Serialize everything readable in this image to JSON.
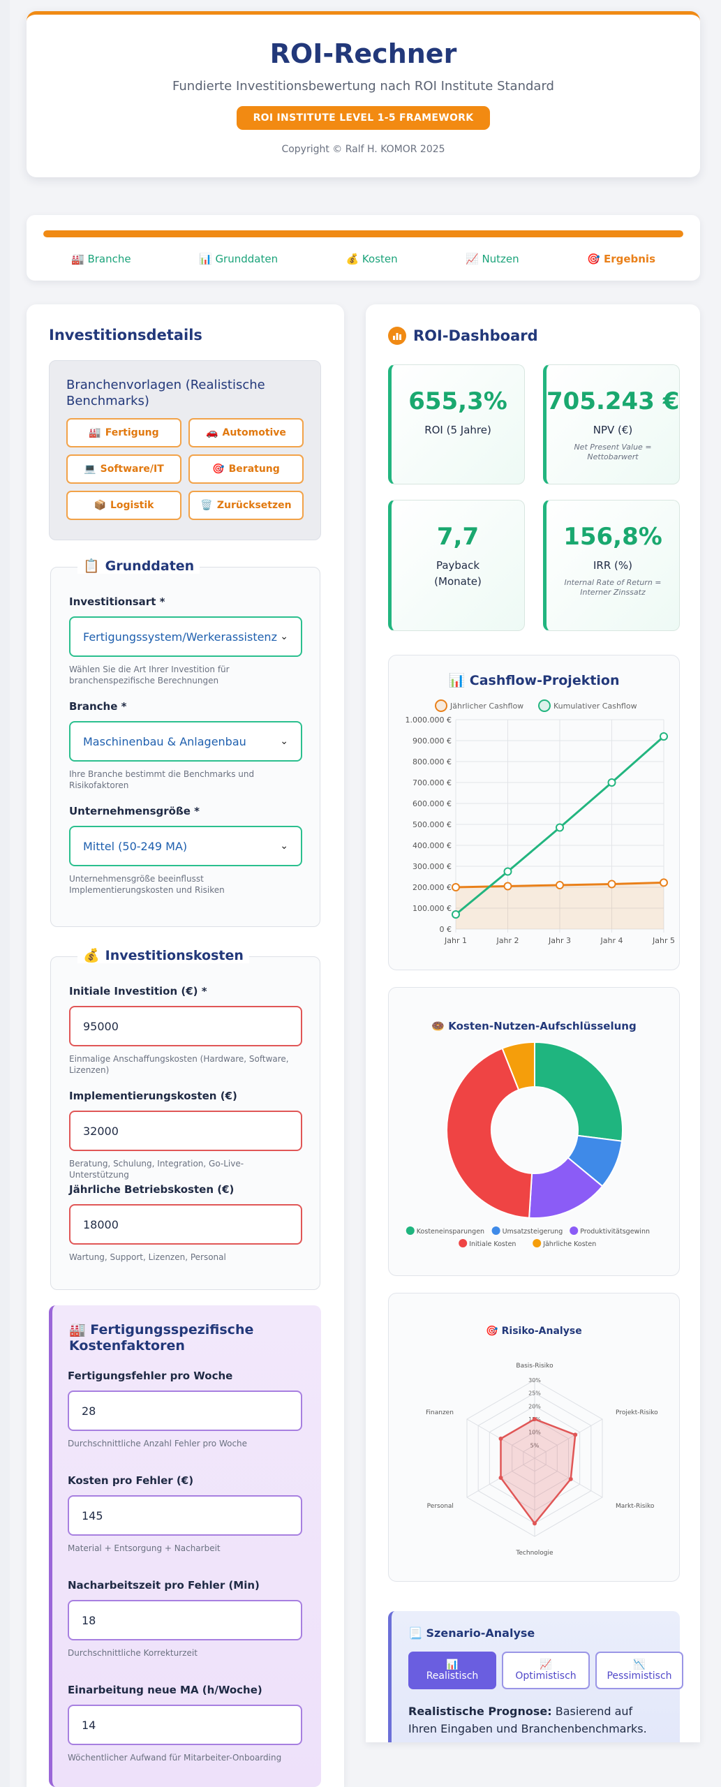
{
  "header": {
    "title": "ROI-Rechner",
    "subtitle": "Fundierte Investitionsbewertung nach ROI Institute Standard",
    "badge": "ROI INSTITUTE LEVEL 1-5 FRAMEWORK",
    "copyright": "Copyright © Ralf H. KOMOR 2025"
  },
  "progress": {
    "value": 1.0,
    "steps": [
      {
        "icon": "🏭",
        "label": "Branche"
      },
      {
        "icon": "📊",
        "label": "Grunddaten"
      },
      {
        "icon": "💰",
        "label": "Kosten"
      },
      {
        "icon": "📈",
        "label": "Nutzen"
      },
      {
        "icon": "🎯",
        "label": "Ergebnis"
      }
    ]
  },
  "left": {
    "title": "Investitionsdetails",
    "templates": {
      "title": "Branchenvorlagen (Realistische Benchmarks)",
      "buttons": [
        {
          "icon": "🏭",
          "label": "Fertigung"
        },
        {
          "icon": "🚗",
          "label": "Automotive"
        },
        {
          "icon": "💻",
          "label": "Software/IT"
        },
        {
          "icon": "🎯",
          "label": "Beratung"
        },
        {
          "icon": "📦",
          "label": "Logistik"
        },
        {
          "icon": "🗑️",
          "label": "Zurücksetzen"
        }
      ]
    },
    "grunddaten": {
      "icon": "📋",
      "title": "Grunddaten",
      "art_label": "Investitionsart *",
      "art_value": "Fertigungssystem/Werkerassistenz",
      "art_hint": "Wählen Sie die Art Ihrer Investition für branchenspezifische Berechnungen",
      "branche_label": "Branche *",
      "branche_value": "Maschinenbau & Anlagenbau",
      "branche_hint": "Ihre Branche bestimmt die Benchmarks und Risikofaktoren",
      "groesse_label": "Unternehmensgröße *",
      "groesse_value": "Mittel (50-249 MA)",
      "groesse_hint": "Unternehmensgröße beeinflusst Implementierungskosten und Risiken"
    },
    "kosten": {
      "icon": "💰",
      "title": "Investitionskosten",
      "initial_label": "Initiale Investition (€) *",
      "initial_value": "95000",
      "initial_hint": "Einmalige Anschaffungskosten (Hardware, Software, Lizenzen)",
      "impl_label": "Implementierungskosten (€)",
      "impl_value": "32000",
      "impl_hint": "Beratung, Schulung, Integration, Go-Live-Unterstützung",
      "betrieb_label": "Jährliche Betriebskosten (€)",
      "betrieb_value": "18000",
      "betrieb_hint": "Wartung, Support, Lizenzen, Personal"
    },
    "fertigung": {
      "icon": "🏭",
      "title": "Fertigungsspezifische Kostenfaktoren",
      "f1_label": "Fertigungsfehler pro Woche",
      "f1_value": "28",
      "f1_hint": "Durchschnittliche Anzahl Fehler pro Woche",
      "f2_label": "Kosten pro Fehler (€)",
      "f2_value": "145",
      "f2_hint": "Material + Entsorgung + Nacharbeit",
      "f3_label": "Nacharbeitszeit pro Fehler (Min)",
      "f3_value": "18",
      "f3_hint": "Durchschnittliche Korrekturzeit",
      "f4_label": "Einarbeitung neue MA (h/Woche)",
      "f4_value": "14",
      "f4_hint": "Wöchentlicher Aufwand für Mitarbeiter-Onboarding"
    }
  },
  "dashboard": {
    "title": "ROI-Dashboard",
    "kpis": [
      {
        "value": "655,3%",
        "label": "ROI (5 Jahre)",
        "sub": ""
      },
      {
        "value": "705.243 €",
        "label": "NPV (€)",
        "sub": "Net Present Value = Nettobarwert"
      },
      {
        "value": "7,7",
        "label": "Payback (Monate)",
        "sub": ""
      },
      {
        "value": "156,8%",
        "label": "IRR (%)",
        "sub": "Internal Rate of Return = Interner Zinssatz"
      }
    ],
    "cashflow_title": "Cashflow-Projektion",
    "kosten_title": "Kosten-Nutzen-Aufschlüsselung",
    "risiko_title": "Risiko-Analyse",
    "scenario": {
      "title": "Szenario-Analyse",
      "buttons": [
        {
          "icon": "📊",
          "label": "Realistisch"
        },
        {
          "icon": "📈",
          "label": "Optimistisch"
        },
        {
          "icon": "📉",
          "label": "Pessimistisch"
        }
      ],
      "text_bold": "Realistische Prognose:",
      "text": "Basierend auf Ihren Eingaben und Branchenbenchmarks."
    }
  },
  "chart_data": [
    {
      "type": "line",
      "title": "📊 Cashflow-Projektion",
      "categories": [
        "Jahr 1",
        "Jahr 2",
        "Jahr 3",
        "Jahr 4",
        "Jahr 5"
      ],
      "series": [
        {
          "name": "Jährlicher Cashflow",
          "color": "#e9801a",
          "values": [
            200000,
            205000,
            210000,
            215000,
            222000
          ]
        },
        {
          "name": "Kumulativer Cashflow",
          "color": "#22b57f",
          "values": [
            70000,
            275000,
            485000,
            700000,
            920000
          ]
        }
      ],
      "ylim": [
        0,
        1000000
      ],
      "yticks": [
        0,
        100000,
        200000,
        300000,
        400000,
        500000,
        600000,
        700000,
        800000,
        900000,
        1000000
      ],
      "ytick_labels": [
        "0 €",
        "100.000 €",
        "200.000 €",
        "300.000 €",
        "400.000 €",
        "500.000 €",
        "600.000 €",
        "700.000 €",
        "800.000 €",
        "900.000 €",
        "1.000.000 €"
      ],
      "legend": "top",
      "grid": true
    },
    {
      "type": "pie",
      "title": "🍩 Kosten-Nutzen-Aufschlüsselung",
      "labels": [
        "Kosteneinsparungen",
        "Umsatzsteigerung",
        "Produktivitätsgewinn",
        "Initiale Kosten",
        "Jährliche Kosten"
      ],
      "values": [
        27,
        9,
        15,
        43,
        6
      ],
      "colors": [
        "#1fb57f",
        "#3f8ae8",
        "#8b5cf6",
        "#ef4444",
        "#f59e0b"
      ],
      "legend": "bottom"
    },
    {
      "type": "radar",
      "title": "🎯 Risiko-Analyse",
      "axes": [
        "Basis-Risiko",
        "Projekt-Risiko",
        "Markt-Risiko",
        "Technologie",
        "Personal",
        "Finanzen"
      ],
      "values": [
        15,
        18,
        16,
        25,
        15,
        15
      ],
      "rlim": [
        0,
        30
      ],
      "rticks": [
        "5%",
        "10%",
        "15%",
        "20%",
        "25%",
        "30%"
      ],
      "color": "#e05656"
    }
  ]
}
